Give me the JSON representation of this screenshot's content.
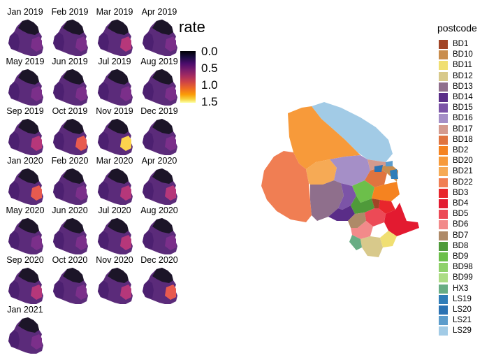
{
  "facets": [
    {
      "label": "Jan 2019",
      "hot": 0.05
    },
    {
      "label": "Feb 2019",
      "hot": 0.08
    },
    {
      "label": "Mar 2019",
      "hot": 0.3
    },
    {
      "label": "Apr 2019",
      "hot": 0.05
    },
    {
      "label": "May 2019",
      "hot": 0.12
    },
    {
      "label": "Jun 2019",
      "hot": 0.05
    },
    {
      "label": "Jul 2019",
      "hot": 0.05
    },
    {
      "label": "Aug 2019",
      "hot": 0.1
    },
    {
      "label": "Sep 2019",
      "hot": 0.4
    },
    {
      "label": "Oct 2019",
      "hot": 0.55
    },
    {
      "label": "Nov 2019",
      "hot": 0.95
    },
    {
      "label": "Dec 2019",
      "hot": 0.1
    },
    {
      "label": "Jan 2020",
      "hot": 0.55
    },
    {
      "label": "Feb 2020",
      "hot": 0.15
    },
    {
      "label": "Mar 2020",
      "hot": 0.3
    },
    {
      "label": "Apr 2020",
      "hot": 0.4
    },
    {
      "label": "May 2020",
      "hot": 0.05
    },
    {
      "label": "Jun 2020",
      "hot": 0.2
    },
    {
      "label": "Jul 2020",
      "hot": 0.3
    },
    {
      "label": "Aug 2020",
      "hot": 0.1
    },
    {
      "label": "Sep 2020",
      "hot": 0.45
    },
    {
      "label": "Oct 2020",
      "hot": 0.1
    },
    {
      "label": "Nov 2020",
      "hot": 0.3
    },
    {
      "label": "Dec 2020",
      "hot": 0.5
    },
    {
      "label": "Jan 2021",
      "hot": 0.2
    }
  ],
  "rate_legend": {
    "title": "rate",
    "ticks": [
      "0.0",
      "0.5",
      "1.0",
      "1.5"
    ],
    "range": [
      0,
      1.5
    ]
  },
  "postcode_legend": {
    "title": "postcode",
    "items": [
      {
        "label": "BD1",
        "color": "#a14527"
      },
      {
        "label": "BD10",
        "color": "#c98d4d"
      },
      {
        "label": "BD11",
        "color": "#f0df72"
      },
      {
        "label": "BD12",
        "color": "#d8c98b"
      },
      {
        "label": "BD13",
        "color": "#8f6f8c"
      },
      {
        "label": "BD14",
        "color": "#5a2d88"
      },
      {
        "label": "BD15",
        "color": "#7c54a7"
      },
      {
        "label": "BD16",
        "color": "#a58fc7"
      },
      {
        "label": "BD17",
        "color": "#d49a8e"
      },
      {
        "label": "BD18",
        "color": "#e0743f"
      },
      {
        "label": "BD2",
        "color": "#f58320"
      },
      {
        "label": "BD20",
        "color": "#f79a3a"
      },
      {
        "label": "BD21",
        "color": "#f6aa55"
      },
      {
        "label": "BD22",
        "color": "#f07e53"
      },
      {
        "label": "BD3",
        "color": "#e8262c"
      },
      {
        "label": "BD4",
        "color": "#e31a30"
      },
      {
        "label": "BD5",
        "color": "#ec4a56"
      },
      {
        "label": "BD6",
        "color": "#f28a8a"
      },
      {
        "label": "BD7",
        "color": "#ae8a68"
      },
      {
        "label": "BD8",
        "color": "#4f9a3a"
      },
      {
        "label": "BD9",
        "color": "#6cbf4a"
      },
      {
        "label": "BD98",
        "color": "#8fd16b"
      },
      {
        "label": "BD99",
        "color": "#acdc85"
      },
      {
        "label": "HX3",
        "color": "#68ad84"
      },
      {
        "label": "LS19",
        "color": "#2f7db8"
      },
      {
        "label": "LS20",
        "color": "#2a72b3"
      },
      {
        "label": "LS21",
        "color": "#5b9ccc"
      },
      {
        "label": "LS29",
        "color": "#a2cbe6"
      }
    ]
  }
}
